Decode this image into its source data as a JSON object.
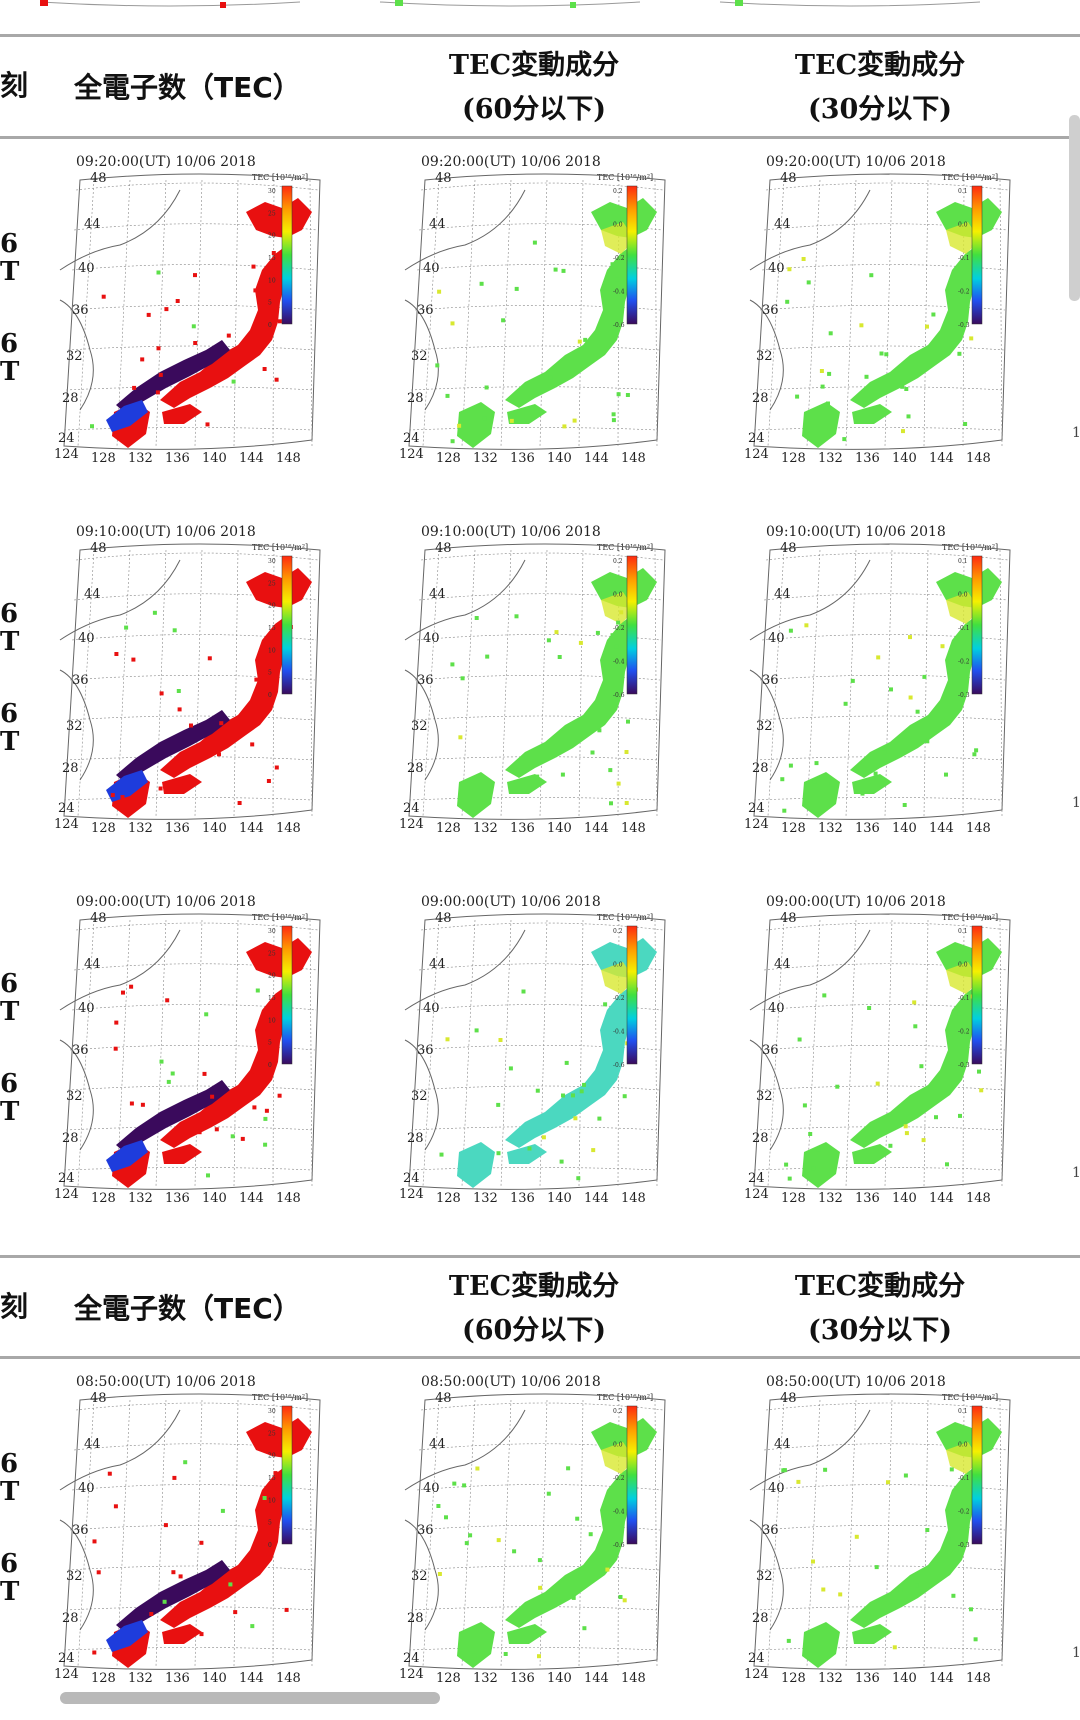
{
  "header": {
    "time_col_label": "刻",
    "tec_label": "全電子数（TEC）",
    "var60_label_line1": "TEC変動成分",
    "var60_label_line2": "(60分以下)",
    "var30_label_line1": "TEC変動成分",
    "var30_label_line2": "(30分以下)"
  },
  "colors": {
    "divider": "#a8a8a8",
    "tec_red": "#e81010",
    "tec_purple": "#3a0a5c",
    "tec_blue": "#1e3cdc",
    "var_green": "#5de04a",
    "var_cyan": "#4bd8c0",
    "var_yellow": "#d8e830"
  },
  "side_labels": {
    "a": "6",
    "b": "T"
  },
  "rows": [
    {
      "timestamp": "09:20:00(UT)  10/06 2018"
    },
    {
      "timestamp": "09:10:00(UT)  10/06 2018"
    },
    {
      "timestamp": "09:00:00(UT)  10/06 2018"
    },
    {
      "timestamp": "08:50:00(UT)  10/06 2018"
    }
  ],
  "map": {
    "lat_labels": [
      "48",
      "44",
      "40",
      "36",
      "32",
      "28",
      "24"
    ],
    "lon_labels": [
      "124",
      "128",
      "132",
      "136",
      "140",
      "144",
      "148"
    ],
    "tec_unit": "TEC [10¹⁶/m²]",
    "tec_ticks": [
      "30",
      "25",
      "20",
      "15",
      "10",
      "5",
      "0"
    ],
    "var60_ticks": [
      "0.2",
      "0.0",
      "-0.2",
      "-0.4",
      "-0.6"
    ],
    "var30_ticks": [
      "0.1",
      "0.0",
      "-0.1",
      "-0.2",
      "-0.3"
    ]
  }
}
